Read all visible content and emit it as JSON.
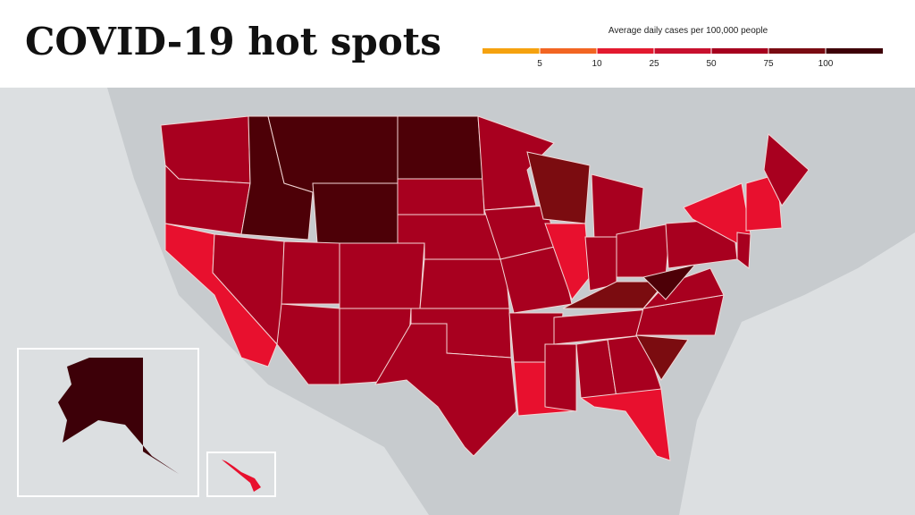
{
  "header": {
    "title": "COVID-19 hot spots"
  },
  "legend": {
    "title": "Average daily cases per 100,000 people",
    "ticks": [
      5,
      10,
      25,
      50,
      75,
      100
    ],
    "colors": [
      "#f5a20f",
      "#f26522",
      "#e31a2f",
      "#c8102e",
      "#a6001e",
      "#7a0b12",
      "#3d0008"
    ]
  }
}
